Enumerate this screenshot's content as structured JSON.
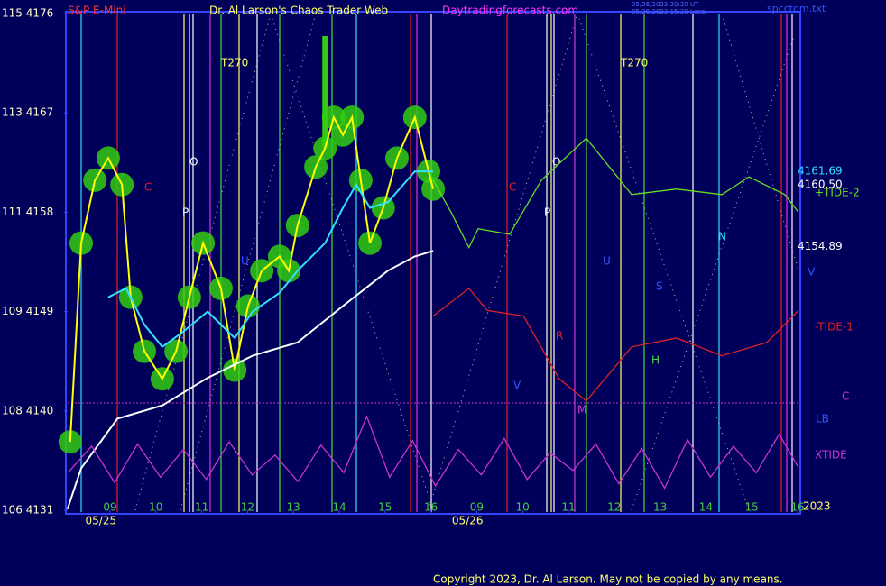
{
  "chart_data": {
    "type": "line",
    "symbol": "S&P E-Mini",
    "title": "Dr. Al Larson's Chaos Trader Web",
    "site": "Daytradingforecasts.com",
    "timestamps": [
      "05/26/2023 20:20 UT",
      "05/26/2023 15:20 Local"
    ],
    "file": "spcctom.txt",
    "copyright": "Copyright 2023, Dr. Al Larson. May not be copied by any means.",
    "xlim": [
      -0.925,
      15.02
    ],
    "ylim": [
      4131,
      4176
    ],
    "yticks": [
      {
        "value": 4176,
        "label": "115 4176"
      },
      {
        "value": 4167,
        "label": "113 4167"
      },
      {
        "value": 4158,
        "label": "111 4158"
      },
      {
        "value": 4149,
        "label": "109 4149"
      },
      {
        "value": 4140,
        "label": "108 4140"
      },
      {
        "value": 4131,
        "label": "106 4131"
      }
    ],
    "xticks": [
      {
        "value": 0,
        "label": "09"
      },
      {
        "value": 1,
        "label": "10"
      },
      {
        "value": 2,
        "label": "11"
      },
      {
        "value": 3,
        "label": "12"
      },
      {
        "value": 4,
        "label": "13"
      },
      {
        "value": 5,
        "label": "14"
      },
      {
        "value": 6,
        "label": "15"
      },
      {
        "value": 7,
        "label": "16"
      },
      {
        "value": 8,
        "label": "09"
      },
      {
        "value": 9,
        "label": "10"
      },
      {
        "value": 10,
        "label": "11"
      },
      {
        "value": 11,
        "label": "12"
      },
      {
        "value": 12,
        "label": "13"
      },
      {
        "value": 13,
        "label": "14"
      },
      {
        "value": 14,
        "label": "15"
      },
      {
        "value": 15,
        "label": "16"
      }
    ],
    "date_labels": [
      {
        "value": -0.2,
        "label": "05/25"
      },
      {
        "value": 7.8,
        "label": "05/26"
      }
    ],
    "year": "2023",
    "price_levels": [
      {
        "value": 4161.69,
        "label": "4161.69"
      },
      {
        "value": 4160.5,
        "label": "4160.50"
      },
      {
        "value": 4154.89,
        "label": "4154.89"
      }
    ],
    "labels": [
      "V",
      "C",
      "LB"
    ],
    "annotations": [
      "T270",
      "T270",
      "O",
      "P",
      "C",
      "U",
      "O",
      "P",
      "C",
      "N",
      "U",
      "S",
      "R",
      "H",
      "M",
      "V"
    ],
    "series": [
      {
        "color": "#ffff00",
        "x": [
          -0.87,
          -0.63,
          -0.33,
          -0.04,
          0.26,
          0.45,
          0.75,
          1.14,
          1.44,
          1.73,
          2.03,
          2.42,
          2.72,
          3.01,
          3.31,
          3.7,
          3.9,
          4.09,
          4.49,
          4.69,
          4.88,
          5.08,
          5.28,
          5.47,
          5.67,
          5.96,
          6.26,
          6.65,
          6.95,
          7.05
        ],
        "values": [
          4137.2,
          4155.2,
          4160.9,
          4162.9,
          4160.5,
          4150.3,
          4145.4,
          4142.9,
          4145.4,
          4150.3,
          4155.2,
          4151.1,
          4143.7,
          4149.5,
          4152.7,
          4154.0,
          4152.7,
          4156.8,
          4162.1,
          4163.8,
          4166.6,
          4165.0,
          4166.6,
          4160.9,
          4155.2,
          4158.4,
          4162.9,
          4166.6,
          4161.7,
          4160.1
        ]
      },
      {
        "color": "#33e0ff",
        "x": [
          -0.04,
          0.35,
          0.75,
          1.14,
          1.54,
          2.13,
          2.72,
          3.11,
          3.7,
          4.09,
          4.69,
          5.08,
          5.37,
          5.67,
          6.06,
          6.65,
          7.05
        ],
        "values": [
          4150.3,
          4151.1,
          4147.8,
          4145.8,
          4147.0,
          4149.0,
          4146.6,
          4149.0,
          4150.7,
          4152.7,
          4155.2,
          4158.4,
          4160.5,
          4158.4,
          4158.9,
          4161.7,
          4161.7
        ]
      },
      {
        "color": "#ffffff",
        "x": [
          -0.93,
          -0.63,
          0.16,
          1.14,
          2.13,
          3.11,
          4.09,
          5.08,
          6.06,
          6.65,
          7.05
        ],
        "values": [
          4131.1,
          4134.8,
          4139.3,
          4140.5,
          4143.0,
          4145.0,
          4146.2,
          4149.5,
          4152.7,
          4154.0,
          4154.5
        ]
      },
      {
        "name": "+TIDE-2",
        "color": "#66dd22",
        "x": [
          7.05,
          7.44,
          7.83,
          8.03,
          8.72,
          9.41,
          10.39,
          11.38,
          12.36,
          13.35,
          13.94,
          14.72,
          15.02
        ],
        "values": [
          4160.9,
          4158.0,
          4154.8,
          4156.5,
          4156.0,
          4160.9,
          4164.7,
          4159.6,
          4160.1,
          4159.6,
          4161.2,
          4159.6,
          4158.0
        ]
      },
      {
        "name": "-TIDE-1",
        "color": "#dd2222",
        "x": [
          7.05,
          7.83,
          8.23,
          9.02,
          9.8,
          10.39,
          11.38,
          12.36,
          13.35,
          14.33,
          15.02
        ],
        "values": [
          4148.6,
          4151.1,
          4149.1,
          4148.6,
          4142.9,
          4140.9,
          4145.8,
          4146.6,
          4145.0,
          4146.2,
          4149.1
        ]
      },
      {
        "name": "XTIDE",
        "color": "#cc33cc",
        "x": [
          -0.9,
          -0.4,
          0.1,
          0.6,
          1.1,
          1.6,
          2.1,
          2.6,
          3.1,
          3.6,
          4.1,
          4.6,
          5.1,
          5.6,
          6.1,
          6.6,
          7.1,
          7.6,
          8.1,
          8.6,
          9.1,
          9.6,
          10.1,
          10.6,
          11.1,
          11.6,
          12.1,
          12.6,
          13.1,
          13.6,
          14.1,
          14.6,
          15.0
        ],
        "values": [
          4134.5,
          4136.8,
          4133.5,
          4137.0,
          4134.0,
          4136.5,
          4133.8,
          4137.2,
          4134.2,
          4136.0,
          4133.6,
          4136.9,
          4134.4,
          4139.5,
          4134.0,
          4137.3,
          4133.2,
          4136.5,
          4134.2,
          4137.5,
          4133.8,
          4136.2,
          4134.6,
          4137.0,
          4133.4,
          4136.6,
          4133.0,
          4137.4,
          4134.0,
          4136.8,
          4134.4,
          4137.9,
          4135.0
        ]
      }
    ]
  }
}
